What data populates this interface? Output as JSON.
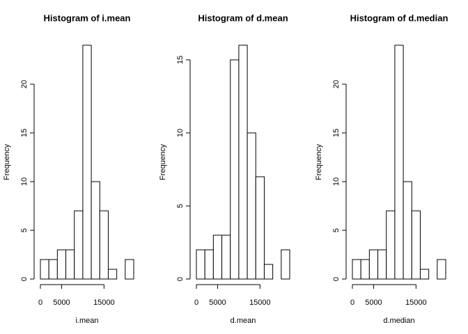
{
  "chart_data": [
    {
      "type": "histogram",
      "title": "Histogram of i.mean",
      "x_label": "i.mean",
      "y_label": "Frequency",
      "bins": [
        0,
        2000,
        4000,
        6000,
        8000,
        10000,
        12000,
        14000,
        16000,
        18000,
        20000,
        22000
      ],
      "values": [
        2,
        2,
        3,
        3,
        7,
        24,
        10,
        7,
        1,
        0,
        2
      ],
      "xlim": [
        0,
        22000
      ],
      "xticks": [
        0,
        5000,
        15000
      ],
      "ylim": [
        0,
        24
      ],
      "yticks": [
        0,
        5,
        10,
        15,
        20
      ],
      "color": "#ffffff"
    },
    {
      "type": "histogram",
      "title": "Histogram of d.mean",
      "x_label": "d.mean",
      "y_label": "Frequency",
      "bins": [
        0,
        2000,
        4000,
        6000,
        8000,
        10000,
        12000,
        14000,
        16000,
        18000,
        20000,
        22000
      ],
      "values": [
        2,
        2,
        3,
        3,
        15,
        16,
        10,
        7,
        1,
        0,
        2
      ],
      "xlim": [
        0,
        22000
      ],
      "xticks": [
        0,
        5000,
        15000
      ],
      "ylim": [
        0,
        16
      ],
      "yticks": [
        0,
        5,
        10,
        15
      ],
      "color": "#ffffff"
    },
    {
      "type": "histogram",
      "title": "Histogram of d.median",
      "x_label": "d.median",
      "y_label": "Frequency",
      "bins": [
        0,
        2000,
        4000,
        6000,
        8000,
        10000,
        12000,
        14000,
        16000,
        18000,
        20000,
        22000
      ],
      "values": [
        2,
        2,
        3,
        3,
        7,
        24,
        10,
        7,
        1,
        0,
        2
      ],
      "xlim": [
        0,
        22000
      ],
      "xticks": [
        0,
        5000,
        15000
      ],
      "ylim": [
        0,
        24
      ],
      "yticks": [
        0,
        5,
        10,
        15,
        20
      ],
      "color": "#ffffff"
    }
  ]
}
